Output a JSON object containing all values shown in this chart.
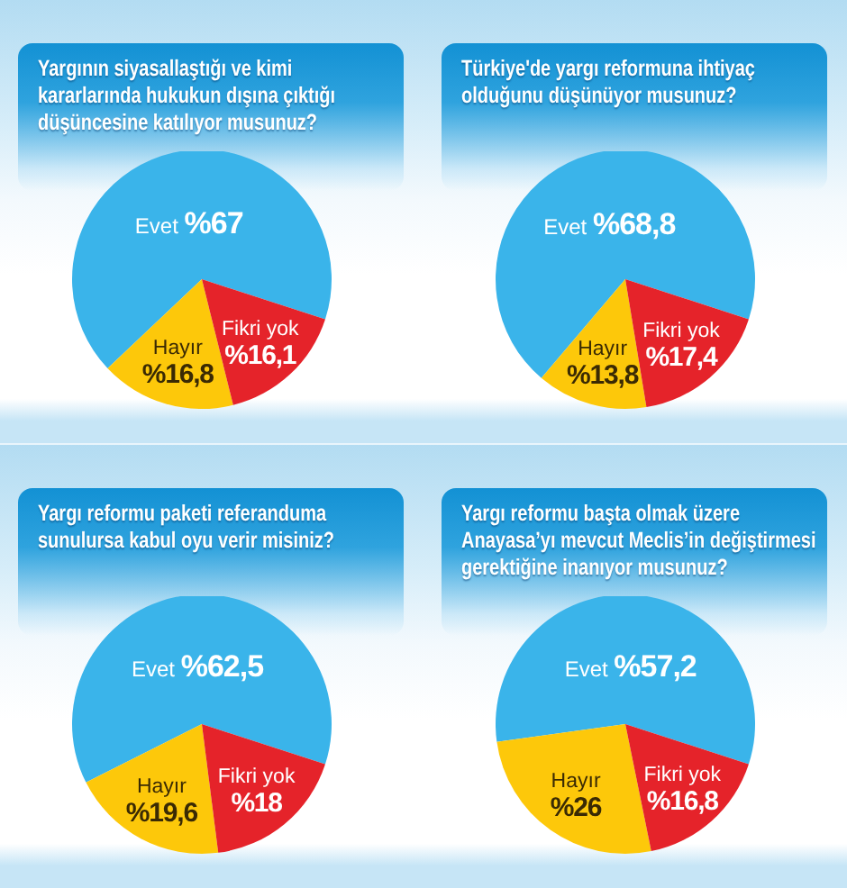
{
  "chart_data": [
    {
      "type": "pie",
      "title": "Yargının siyasallaştığı ve kimi kararlarında hukukun dışına çıktığı düşüncesine katılıyor musunuz?",
      "categories": [
        "Evet",
        "Hayır",
        "Fikri yok"
      ],
      "values": [
        67,
        16.8,
        16.1
      ],
      "colors": [
        "#3ab4ea",
        "#fdc80a",
        "#e5232a"
      ],
      "value_labels": [
        "%67",
        "%16,8",
        "%16,1"
      ]
    },
    {
      "type": "pie",
      "title": "Türkiye'de yargı reformuna ihtiyaç olduğunu düşünüyor musunuz?",
      "categories": [
        "Evet",
        "Hayır",
        "Fikri yok"
      ],
      "values": [
        68.8,
        13.8,
        17.4
      ],
      "colors": [
        "#3ab4ea",
        "#fdc80a",
        "#e5232a"
      ],
      "value_labels": [
        "%68,8",
        "%13,8",
        "%17,4"
      ]
    },
    {
      "type": "pie",
      "title": "Yargı reformu paketi referanduma sunulursa kabul oyu verir misiniz?",
      "categories": [
        "Evet",
        "Hayır",
        "Fikri yok"
      ],
      "values": [
        62.5,
        19.6,
        18
      ],
      "colors": [
        "#3ab4ea",
        "#fdc80a",
        "#e5232a"
      ],
      "value_labels": [
        "%62,5",
        "%19,6",
        "%18"
      ]
    },
    {
      "type": "pie",
      "title": "Yargı reformu başta olmak üzere Anayasa’yı mevcut Meclis’in değiştirmesi gerektiğine inanıyor musunuz?",
      "categories": [
        "Evet",
        "Hayır",
        "Fikri yok"
      ],
      "values": [
        57.2,
        26,
        16.8
      ],
      "colors": [
        "#3ab4ea",
        "#fdc80a",
        "#e5232a"
      ],
      "value_labels": [
        "%57,2",
        "%26",
        "%16,8"
      ]
    }
  ]
}
